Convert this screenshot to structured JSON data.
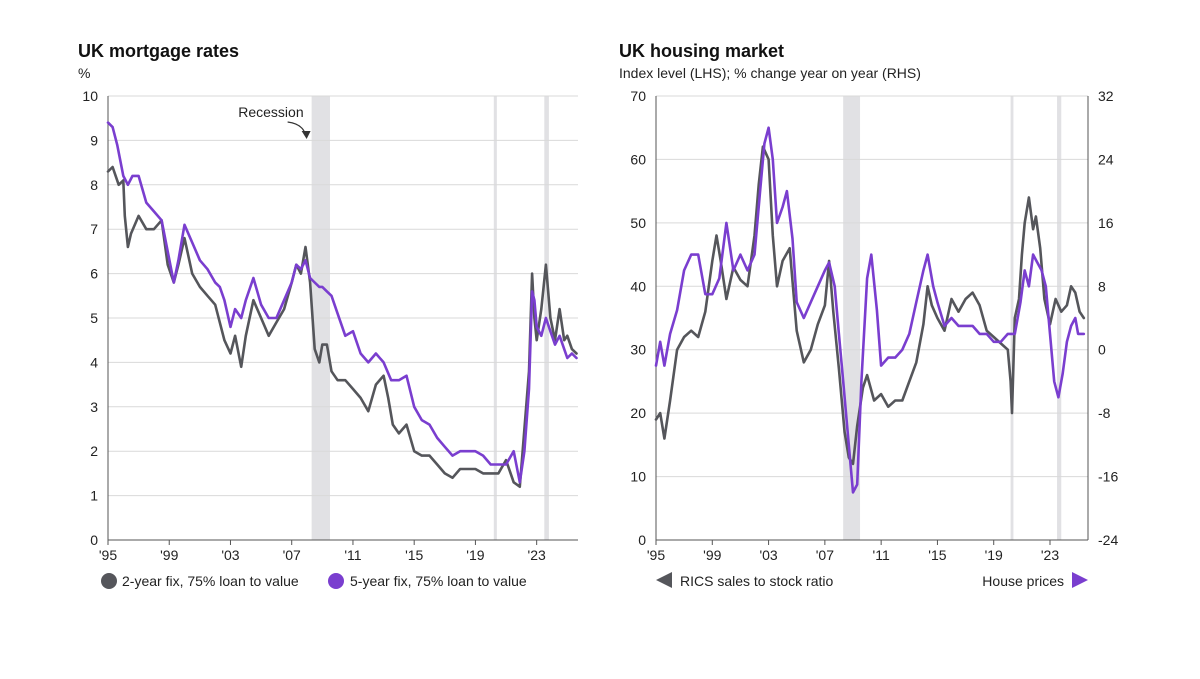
{
  "colors": {
    "grey": "#55565b",
    "purple": "#7a3ecf",
    "recession": "#e1e1e4"
  },
  "chart_data": [
    {
      "type": "line",
      "title": "UK mortgage rates",
      "ylabel": "%",
      "ylim": [
        0,
        10
      ],
      "yticks": [
        "0",
        "1",
        "2",
        "3",
        "4",
        "5",
        "6",
        "7",
        "8",
        "9",
        "10"
      ],
      "xlim": [
        1995,
        2025.7
      ],
      "xticks": [
        {
          "v": 1995,
          "label": "'95"
        },
        {
          "v": 1999,
          "label": "'99"
        },
        {
          "v": 2003,
          "label": "'03"
        },
        {
          "v": 2007,
          "label": "'07"
        },
        {
          "v": 2011,
          "label": "'11"
        },
        {
          "v": 2015,
          "label": "'15"
        },
        {
          "v": 2019,
          "label": "'19"
        },
        {
          "v": 2023,
          "label": "'23"
        }
      ],
      "annotation": "Recession",
      "recessions": [
        [
          2008.3,
          2009.5
        ],
        [
          2020.2,
          2020.4
        ],
        [
          2023.5,
          2023.8
        ]
      ],
      "series": [
        {
          "name": "2-year fix, 75% loan to value",
          "color": "#55565b",
          "x": [
            1995.0,
            1995.3,
            1995.7,
            1996.0,
            1996.1,
            1996.3,
            1996.5,
            1997.0,
            1997.5,
            1998.0,
            1998.5,
            1998.9,
            1999.3,
            1999.6,
            2000.0,
            2000.5,
            2001.0,
            2001.5,
            2002.0,
            2002.3,
            2002.6,
            2003.0,
            2003.3,
            2003.7,
            2004.0,
            2004.5,
            2005.0,
            2005.5,
            2006.0,
            2006.5,
            2007.0,
            2007.3,
            2007.6,
            2007.9,
            2008.2,
            2008.5,
            2008.8,
            2009.0,
            2009.3,
            2009.6,
            2010.0,
            2010.5,
            2011.0,
            2011.5,
            2012.0,
            2012.5,
            2013.0,
            2013.3,
            2013.6,
            2014.0,
            2014.5,
            2015.0,
            2015.5,
            2016.0,
            2016.5,
            2017.0,
            2017.5,
            2018.0,
            2018.5,
            2019.0,
            2019.5,
            2020.0,
            2020.5,
            2021.0,
            2021.5,
            2021.9,
            2022.2,
            2022.5,
            2022.7,
            2022.85,
            2023.0,
            2023.3,
            2023.6,
            2023.9,
            2024.2,
            2024.5,
            2024.8,
            2025.0,
            2025.3,
            2025.6
          ],
          "values": [
            8.3,
            8.4,
            8.0,
            8.1,
            7.3,
            6.6,
            6.9,
            7.3,
            7.0,
            7.0,
            7.2,
            6.2,
            5.8,
            6.2,
            6.8,
            6.0,
            5.7,
            5.5,
            5.3,
            4.9,
            4.5,
            4.2,
            4.6,
            3.9,
            4.6,
            5.4,
            5.0,
            4.6,
            4.9,
            5.2,
            5.8,
            6.2,
            6.0,
            6.6,
            5.8,
            4.3,
            4.0,
            4.4,
            4.4,
            3.8,
            3.6,
            3.6,
            3.4,
            3.2,
            2.9,
            3.5,
            3.7,
            3.2,
            2.6,
            2.4,
            2.6,
            2.0,
            1.9,
            1.9,
            1.7,
            1.5,
            1.4,
            1.6,
            1.6,
            1.6,
            1.5,
            1.5,
            1.5,
            1.8,
            1.3,
            1.2,
            2.5,
            3.8,
            6.0,
            5.0,
            4.5,
            5.2,
            6.2,
            5.0,
            4.5,
            5.2,
            4.5,
            4.6,
            4.3,
            4.2
          ]
        },
        {
          "name": "5-year fix, 75% loan to value",
          "color": "#7a3ecf",
          "x": [
            1995.0,
            1995.3,
            1995.6,
            1996.0,
            1996.3,
            1996.6,
            1997.0,
            1997.5,
            1998.0,
            1998.5,
            1998.9,
            1999.3,
            1999.6,
            2000.0,
            2000.5,
            2001.0,
            2001.5,
            2002.0,
            2002.3,
            2002.6,
            2003.0,
            2003.3,
            2003.7,
            2004.0,
            2004.5,
            2005.0,
            2005.5,
            2006.0,
            2006.5,
            2007.0,
            2007.3,
            2007.6,
            2007.9,
            2008.2,
            2008.5,
            2008.8,
            2009.0,
            2009.3,
            2009.6,
            2010.0,
            2010.5,
            2011.0,
            2011.5,
            2012.0,
            2012.5,
            2013.0,
            2013.5,
            2014.0,
            2014.5,
            2015.0,
            2015.5,
            2016.0,
            2016.5,
            2017.0,
            2017.5,
            2018.0,
            2018.5,
            2019.0,
            2019.5,
            2020.0,
            2020.5,
            2021.0,
            2021.5,
            2021.9,
            2022.2,
            2022.5,
            2022.7,
            2022.85,
            2023.0,
            2023.3,
            2023.6,
            2023.9,
            2024.2,
            2024.5,
            2024.8,
            2025.0,
            2025.3,
            2025.6
          ],
          "values": [
            9.4,
            9.3,
            8.9,
            8.2,
            8.0,
            8.2,
            8.2,
            7.6,
            7.4,
            7.2,
            6.5,
            5.8,
            6.3,
            7.1,
            6.7,
            6.3,
            6.1,
            5.8,
            5.7,
            5.4,
            4.8,
            5.2,
            5.0,
            5.4,
            5.9,
            5.3,
            5.0,
            5.0,
            5.4,
            5.8,
            6.2,
            6.1,
            6.3,
            5.9,
            5.8,
            5.7,
            5.7,
            5.6,
            5.5,
            5.1,
            4.6,
            4.7,
            4.2,
            4.0,
            4.2,
            4.0,
            3.6,
            3.6,
            3.7,
            3.0,
            2.7,
            2.6,
            2.3,
            2.1,
            1.9,
            2.0,
            2.0,
            2.0,
            1.9,
            1.7,
            1.7,
            1.7,
            2.0,
            1.3,
            2.0,
            3.4,
            5.6,
            5.4,
            4.8,
            4.6,
            5.0,
            4.7,
            4.4,
            4.6,
            4.3,
            4.1,
            4.2,
            4.1
          ]
        }
      ]
    },
    {
      "type": "line",
      "title": "UK housing market",
      "subtitle": "Index level (LHS); % change year on year (RHS)",
      "ylim_left": [
        0,
        70
      ],
      "yticks_left": [
        "0",
        "10",
        "20",
        "30",
        "40",
        "50",
        "60",
        "70"
      ],
      "ylim_right": [
        -24,
        32
      ],
      "yticks_right": [
        "-24",
        "-16",
        "-8",
        "0",
        "8",
        "16",
        "24",
        "32"
      ],
      "xlim": [
        1995,
        2025.7
      ],
      "xticks": [
        {
          "v": 1995,
          "label": "'95"
        },
        {
          "v": 1999,
          "label": "'99"
        },
        {
          "v": 2003,
          "label": "'03"
        },
        {
          "v": 2007,
          "label": "'07"
        },
        {
          "v": 2011,
          "label": "'11"
        },
        {
          "v": 2015,
          "label": "'15"
        },
        {
          "v": 2019,
          "label": "'19"
        },
        {
          "v": 2023,
          "label": "'23"
        }
      ],
      "recessions": [
        [
          2008.3,
          2009.5
        ],
        [
          2020.2,
          2020.4
        ],
        [
          2023.5,
          2023.8
        ]
      ],
      "series": [
        {
          "name": "RICS sales to stock ratio",
          "axis": "left",
          "color": "#55565b",
          "x": [
            1995.0,
            1995.3,
            1995.6,
            1996.0,
            1996.5,
            1997.0,
            1997.5,
            1998.0,
            1998.5,
            1999.0,
            1999.3,
            1999.6,
            2000.0,
            2000.5,
            2001.0,
            2001.5,
            2002.0,
            2002.3,
            2002.6,
            2003.0,
            2003.3,
            2003.6,
            2004.0,
            2004.5,
            2005.0,
            2005.5,
            2006.0,
            2006.5,
            2007.0,
            2007.3,
            2007.6,
            2008.0,
            2008.4,
            2008.7,
            2009.0,
            2009.3,
            2009.7,
            2010.0,
            2010.5,
            2011.0,
            2011.5,
            2012.0,
            2012.5,
            2013.0,
            2013.5,
            2014.0,
            2014.3,
            2014.6,
            2015.0,
            2015.5,
            2016.0,
            2016.5,
            2017.0,
            2017.5,
            2018.0,
            2018.5,
            2019.0,
            2019.5,
            2020.0,
            2020.2,
            2020.3,
            2020.5,
            2020.8,
            2021.0,
            2021.2,
            2021.5,
            2021.8,
            2022.0,
            2022.3,
            2022.6,
            2023.0,
            2023.4,
            2023.8,
            2024.2,
            2024.5,
            2024.8,
            2025.1,
            2025.4
          ],
          "values": [
            19,
            20,
            16,
            22,
            30,
            32,
            33,
            32,
            36,
            44,
            48,
            44,
            38,
            43,
            41,
            40,
            48,
            56,
            62,
            60,
            48,
            40,
            44,
            46,
            33,
            28,
            30,
            34,
            37,
            44,
            36,
            27,
            17,
            13,
            12,
            18,
            24,
            26,
            22,
            23,
            21,
            22,
            22,
            25,
            28,
            34,
            40,
            37,
            35,
            33,
            38,
            36,
            38,
            39,
            37,
            33,
            32,
            31,
            30,
            25,
            20,
            35,
            38,
            45,
            50,
            54,
            49,
            51,
            46,
            38,
            34,
            38,
            36,
            37,
            40,
            39,
            36,
            35
          ]
        },
        {
          "name": "House prices",
          "axis": "right",
          "color": "#7a3ecf",
          "x": [
            1995.0,
            1995.3,
            1995.6,
            1996.0,
            1996.5,
            1997.0,
            1997.5,
            1998.0,
            1998.5,
            1999.0,
            1999.5,
            2000.0,
            2000.5,
            2001.0,
            2001.5,
            2002.0,
            2002.4,
            2002.7,
            2003.0,
            2003.3,
            2003.6,
            2004.0,
            2004.3,
            2004.7,
            2005.0,
            2005.5,
            2006.0,
            2006.5,
            2007.0,
            2007.3,
            2007.7,
            2008.0,
            2008.3,
            2008.7,
            2009.0,
            2009.3,
            2009.6,
            2010.0,
            2010.3,
            2010.7,
            2011.0,
            2011.5,
            2012.0,
            2012.5,
            2013.0,
            2013.5,
            2014.0,
            2014.3,
            2014.7,
            2015.0,
            2015.5,
            2016.0,
            2016.5,
            2017.0,
            2017.5,
            2018.0,
            2018.5,
            2019.0,
            2019.5,
            2020.0,
            2020.5,
            2020.9,
            2021.2,
            2021.5,
            2021.8,
            2022.1,
            2022.4,
            2022.7,
            2023.0,
            2023.3,
            2023.6,
            2023.9,
            2024.2,
            2024.5,
            2024.8,
            2025.0,
            2025.4
          ],
          "values": [
            -2,
            1,
            -2,
            2,
            5,
            10,
            12,
            12,
            7,
            7,
            9,
            16,
            10,
            12,
            10,
            12,
            20,
            26,
            28,
            24,
            16,
            18,
            20,
            14,
            6,
            4,
            6,
            8,
            10,
            11,
            8,
            2,
            -4,
            -12,
            -18,
            -17,
            -4,
            9,
            12,
            5,
            -2,
            -1,
            -1,
            0,
            2,
            6,
            10,
            12,
            8,
            6,
            3,
            4,
            3,
            3,
            3,
            2,
            2,
            1,
            1,
            2,
            2,
            6,
            10,
            8,
            12,
            11,
            10,
            8,
            2,
            -4,
            -6,
            -3,
            1,
            3,
            4,
            2,
            2
          ]
        }
      ]
    }
  ]
}
